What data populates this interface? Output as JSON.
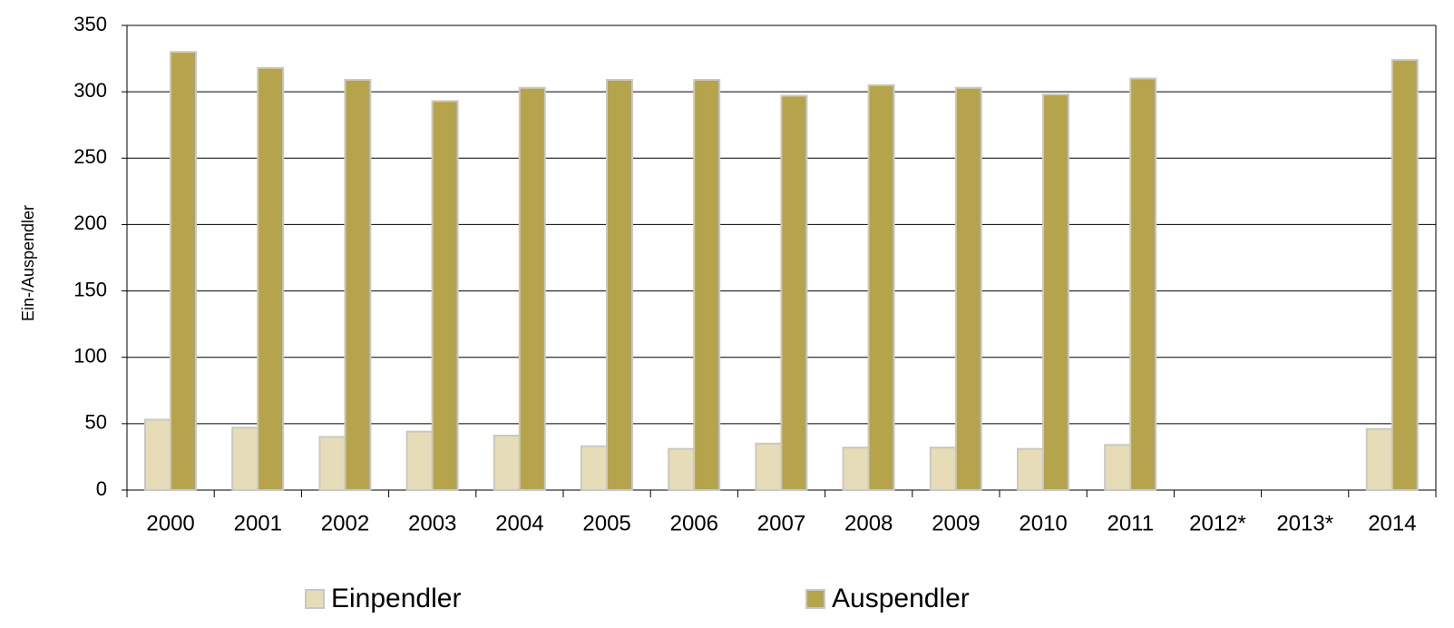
{
  "chart_data": {
    "type": "bar",
    "y_label": "Ein-/Auspendler",
    "categories": [
      "2000",
      "2001",
      "2002",
      "2003",
      "2004",
      "2005",
      "2006",
      "2007",
      "2008",
      "2009",
      "2010",
      "2011",
      "2012*",
      "2013*",
      "2014"
    ],
    "series": [
      {
        "name": "Einpendler",
        "color": "#e6dcb8",
        "values": [
          53,
          47,
          40,
          44,
          41,
          33,
          31,
          35,
          32,
          32,
          31,
          34,
          null,
          null,
          46
        ]
      },
      {
        "name": "Auspendler",
        "color": "#b5a44b",
        "values": [
          330,
          318,
          309,
          293,
          303,
          309,
          309,
          297,
          305,
          303,
          298,
          310,
          null,
          null,
          324
        ]
      }
    ],
    "ylim": [
      0,
      350
    ],
    "yticks": [
      0,
      50,
      100,
      150,
      200,
      250,
      300,
      350
    ],
    "grid": true
  }
}
